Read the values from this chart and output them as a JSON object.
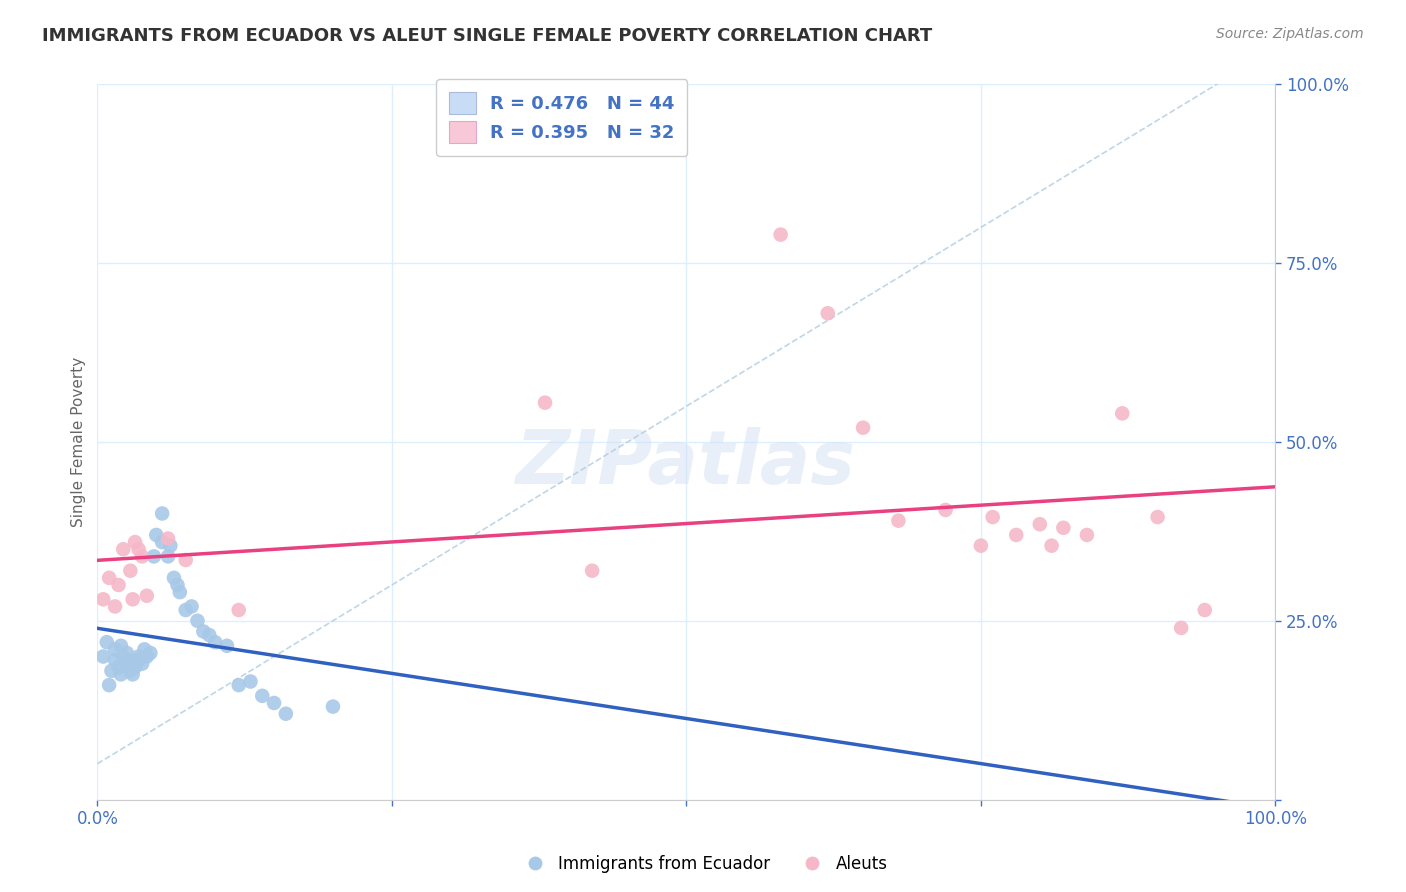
{
  "title": "IMMIGRANTS FROM ECUADOR VS ALEUT SINGLE FEMALE POVERTY CORRELATION CHART",
  "source": "Source: ZipAtlas.com",
  "ylabel": "Single Female Poverty",
  "watermark": "ZIPatlas",
  "legend_blue_label": "Immigrants from Ecuador",
  "legend_pink_label": "Aleuts",
  "R_blue": 0.476,
  "N_blue": 44,
  "R_pink": 0.395,
  "N_pink": 32,
  "blue_color": "#a8c8e8",
  "pink_color": "#f5b8c8",
  "blue_line_color": "#3060c0",
  "pink_line_color": "#e84080",
  "dashed_line_color": "#b0cce0",
  "title_color": "#333333",
  "axis_label_color": "#4472c4",
  "legend_value_color": "#4472c4",
  "background_color": "#ffffff",
  "grid_color": "#ddeeff",
  "xlim": [
    0.0,
    1.0
  ],
  "ylim": [
    0.0,
    1.0
  ],
  "blue_x": [
    0.005,
    0.008,
    0.01,
    0.012,
    0.015,
    0.015,
    0.018,
    0.02,
    0.02,
    0.022,
    0.025,
    0.025,
    0.028,
    0.03,
    0.03,
    0.032,
    0.035,
    0.035,
    0.038,
    0.04,
    0.042,
    0.045,
    0.048,
    0.05,
    0.055,
    0.055,
    0.06,
    0.062,
    0.065,
    0.068,
    0.07,
    0.075,
    0.08,
    0.085,
    0.09,
    0.095,
    0.1,
    0.11,
    0.12,
    0.13,
    0.14,
    0.15,
    0.16,
    0.2
  ],
  "blue_y": [
    0.2,
    0.22,
    0.16,
    0.18,
    0.195,
    0.21,
    0.185,
    0.175,
    0.215,
    0.2,
    0.19,
    0.205,
    0.18,
    0.175,
    0.195,
    0.185,
    0.2,
    0.195,
    0.19,
    0.21,
    0.2,
    0.205,
    0.34,
    0.37,
    0.36,
    0.4,
    0.34,
    0.355,
    0.31,
    0.3,
    0.29,
    0.265,
    0.27,
    0.25,
    0.235,
    0.23,
    0.22,
    0.215,
    0.16,
    0.165,
    0.145,
    0.135,
    0.12,
    0.13
  ],
  "pink_x": [
    0.005,
    0.01,
    0.015,
    0.018,
    0.022,
    0.028,
    0.03,
    0.032,
    0.035,
    0.038,
    0.042,
    0.06,
    0.075,
    0.12,
    0.38,
    0.42,
    0.58,
    0.62,
    0.65,
    0.68,
    0.72,
    0.75,
    0.76,
    0.78,
    0.8,
    0.81,
    0.82,
    0.84,
    0.87,
    0.9,
    0.92,
    0.94
  ],
  "pink_y": [
    0.28,
    0.31,
    0.27,
    0.3,
    0.35,
    0.32,
    0.28,
    0.36,
    0.35,
    0.34,
    0.285,
    0.365,
    0.335,
    0.265,
    0.555,
    0.32,
    0.79,
    0.68,
    0.52,
    0.39,
    0.405,
    0.355,
    0.395,
    0.37,
    0.385,
    0.355,
    0.38,
    0.37,
    0.54,
    0.395,
    0.24,
    0.265
  ]
}
